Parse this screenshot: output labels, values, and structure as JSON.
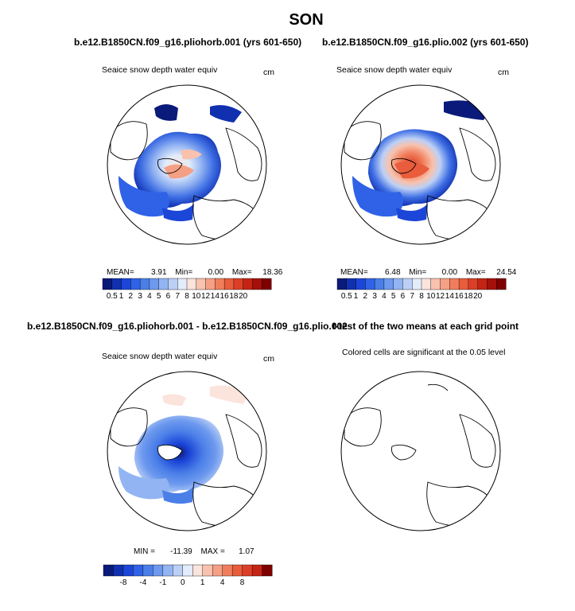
{
  "figure": {
    "title": "SON"
  },
  "panels": [
    {
      "id": "top-left",
      "title": "b.e12.B1850CN.f09_g16.pliohorb.001 (yrs 601-650)",
      "subtitle": "Seaice snow depth water equiv",
      "units": "cm",
      "stats": {
        "mean_label": "MEAN=",
        "mean": "3.91",
        "min_label": "Min=",
        "min": "0.00",
        "max_label": "Max=",
        "max": "18.36"
      },
      "colorbar": {
        "colors": [
          "#0a1a7a",
          "#1030b0",
          "#1c46d8",
          "#2f62e6",
          "#4b7fe8",
          "#6d99ee",
          "#93b4f2",
          "#bcd0f6",
          "#e3ecfb",
          "#fbe4dc",
          "#f8c2ae",
          "#f5a084",
          "#f07e5c",
          "#e95c3c",
          "#dc3f28",
          "#c42414",
          "#a6100a",
          "#7f0000"
        ],
        "labels": [
          "0.5",
          "1",
          "2",
          "3",
          "4",
          "5",
          "6",
          "7",
          "8",
          "10",
          "12",
          "14",
          "16",
          "18",
          "20"
        ]
      }
    },
    {
      "id": "top-right",
      "title": "b.e12.B1850CN.f09_g16.plio.002 (yrs 601-650)",
      "subtitle": "Seaice snow depth water equiv",
      "units": "cm",
      "stats": {
        "mean_label": "MEAN=",
        "mean": "6.48",
        "min_label": "Min=",
        "min": "0.00",
        "max_label": "Max=",
        "max": "24.54"
      },
      "colorbar": {
        "labels": [
          "0.5",
          "1",
          "2",
          "3",
          "4",
          "5",
          "6",
          "7",
          "8",
          "10",
          "12",
          "14",
          "16",
          "18",
          "20"
        ]
      }
    },
    {
      "id": "bottom-left",
      "title": "b.e12.B1850CN.f09_g16.pliohorb.001 - b.e12.B1850CN.f09_g16.plio.002",
      "subtitle": "Seaice snow depth water equiv",
      "units": "cm",
      "stats": {
        "min_label": "MIN =",
        "min": "-11.39",
        "max_label": "MAX =",
        "max": "1.07"
      },
      "colorbar": {
        "colors": [
          "#0a1a7a",
          "#1030b0",
          "#1c46d8",
          "#2f62e6",
          "#4b7fe8",
          "#6d99ee",
          "#93b4f2",
          "#bcd0f6",
          "#e3ecfb",
          "#fbe4dc",
          "#f8c2ae",
          "#f5a084",
          "#f07e5c",
          "#e95c3c",
          "#dc3f28",
          "#c42414",
          "#7f0000"
        ],
        "labels": [
          "-8",
          "-4",
          "-1",
          "0",
          "1",
          "4",
          "8"
        ]
      }
    },
    {
      "id": "bottom-right",
      "title": "t-test of the two means at each grid point",
      "subtitle": "Colored cells are significant at the 0.05 level"
    }
  ]
}
